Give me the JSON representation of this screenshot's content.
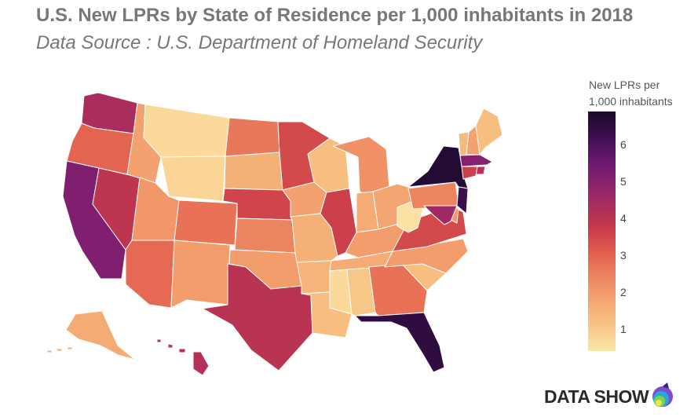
{
  "header": {
    "title": "U.S. New LPRs by State of Residence per 1,000 inhabitants in 2018",
    "subtitle": "Data Source : U.S. Department of Homeland Security"
  },
  "legend": {
    "title_line1": "New LPRs per",
    "title_line2": "1,000 inhabitants",
    "ticks": [
      "6",
      "5",
      "4",
      "3",
      "2",
      "1"
    ]
  },
  "brand": {
    "label": "DATA SHOW"
  },
  "colors": {
    "scale": [
      "#fbe7a9",
      "#f8c181",
      "#f2996a",
      "#e4634f",
      "#c6384a",
      "#9c2768",
      "#6f1a73",
      "#3b0f4f",
      "#1c0a2a"
    ],
    "state_border": "#ffffff"
  },
  "chart_data": {
    "type": "choropleth",
    "value_range": [
      0.3,
      7.0
    ],
    "states": [
      {
        "id": "WA",
        "value": 4.2
      },
      {
        "id": "OR",
        "value": 2.8
      },
      {
        "id": "CA",
        "value": 5.0
      },
      {
        "id": "NV",
        "value": 3.8
      },
      {
        "id": "ID",
        "value": 1.8
      },
      {
        "id": "MT",
        "value": 0.6
      },
      {
        "id": "WY",
        "value": 0.7
      },
      {
        "id": "UT",
        "value": 2.0
      },
      {
        "id": "AZ",
        "value": 2.7
      },
      {
        "id": "CO",
        "value": 2.6
      },
      {
        "id": "NM",
        "value": 1.9
      },
      {
        "id": "ND",
        "value": 2.5
      },
      {
        "id": "SD",
        "value": 1.5
      },
      {
        "id": "NE",
        "value": 3.4
      },
      {
        "id": "KS",
        "value": 2.3
      },
      {
        "id": "OK",
        "value": 1.9
      },
      {
        "id": "TX",
        "value": 3.9
      },
      {
        "id": "MN",
        "value": 3.3
      },
      {
        "id": "IA",
        "value": 1.8
      },
      {
        "id": "MO",
        "value": 1.5
      },
      {
        "id": "AR",
        "value": 1.4
      },
      {
        "id": "LA",
        "value": 1.2
      },
      {
        "id": "WI",
        "value": 1.2
      },
      {
        "id": "IL",
        "value": 3.5
      },
      {
        "id": "MS",
        "value": 0.6
      },
      {
        "id": "AL",
        "value": 1.0
      },
      {
        "id": "MI",
        "value": 2.1
      },
      {
        "id": "IN",
        "value": 1.6
      },
      {
        "id": "OH",
        "value": 1.7
      },
      {
        "id": "KY",
        "value": 1.9
      },
      {
        "id": "TN",
        "value": 1.6
      },
      {
        "id": "GA",
        "value": 2.6
      },
      {
        "id": "FL",
        "value": 6.5
      },
      {
        "id": "SC",
        "value": 1.2
      },
      {
        "id": "NC",
        "value": 1.9
      },
      {
        "id": "VA",
        "value": 3.3
      },
      {
        "id": "WV",
        "value": 0.4
      },
      {
        "id": "PA",
        "value": 2.3
      },
      {
        "id": "NY",
        "value": 6.8
      },
      {
        "id": "VT",
        "value": 1.3
      },
      {
        "id": "NH",
        "value": 1.8
      },
      {
        "id": "ME",
        "value": 1.2
      },
      {
        "id": "MA",
        "value": 4.9
      },
      {
        "id": "RI",
        "value": 4.0
      },
      {
        "id": "CT",
        "value": 3.5
      },
      {
        "id": "NJ",
        "value": 6.2
      },
      {
        "id": "DE",
        "value": 2.0
      },
      {
        "id": "MD",
        "value": 4.4
      },
      {
        "id": "AK",
        "value": 1.6
      },
      {
        "id": "HI",
        "value": 4.0
      }
    ]
  }
}
